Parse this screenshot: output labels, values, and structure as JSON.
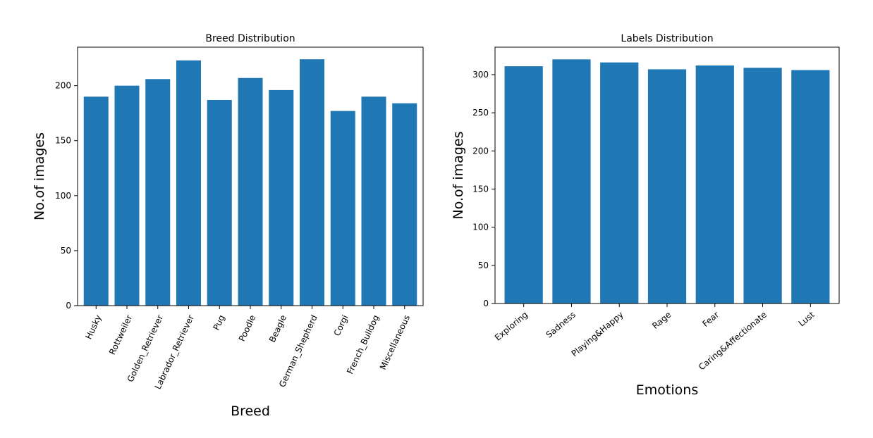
{
  "chart_data": [
    {
      "type": "bar",
      "title": "Breed Distribution",
      "xlabel": "Breed",
      "ylabel": "No.of images",
      "categories": [
        "Husky",
        "Rottweiler",
        "Golden_Retriever",
        "Labrador_Retriever",
        "Pug",
        "Poodle",
        "Beagle",
        "German_Shepherd",
        "Corgi",
        "French_Bulldog",
        "Miscellaneous"
      ],
      "values": [
        190,
        200,
        206,
        223,
        187,
        207,
        196,
        224,
        177,
        190,
        184
      ],
      "ylim": [
        0,
        235
      ],
      "yticks": [
        0,
        50,
        100,
        150,
        200
      ],
      "x_tick_rotation": 65,
      "color": "#1f77b4",
      "grid": false,
      "legend": "none"
    },
    {
      "type": "bar",
      "title": "Labels Distribution",
      "xlabel": "Emotions",
      "ylabel": "No.of images",
      "categories": [
        "Exploring",
        "Sadness",
        "Playing&Happy",
        "Rage",
        "Fear",
        "Caring&Affectionate",
        "Lust"
      ],
      "values": [
        311,
        320,
        316,
        307,
        312,
        309,
        306
      ],
      "ylim": [
        0,
        336
      ],
      "yticks": [
        0,
        50,
        100,
        150,
        200,
        250,
        300
      ],
      "x_tick_rotation": 40,
      "color": "#1f77b4",
      "grid": false,
      "legend": "none"
    }
  ]
}
